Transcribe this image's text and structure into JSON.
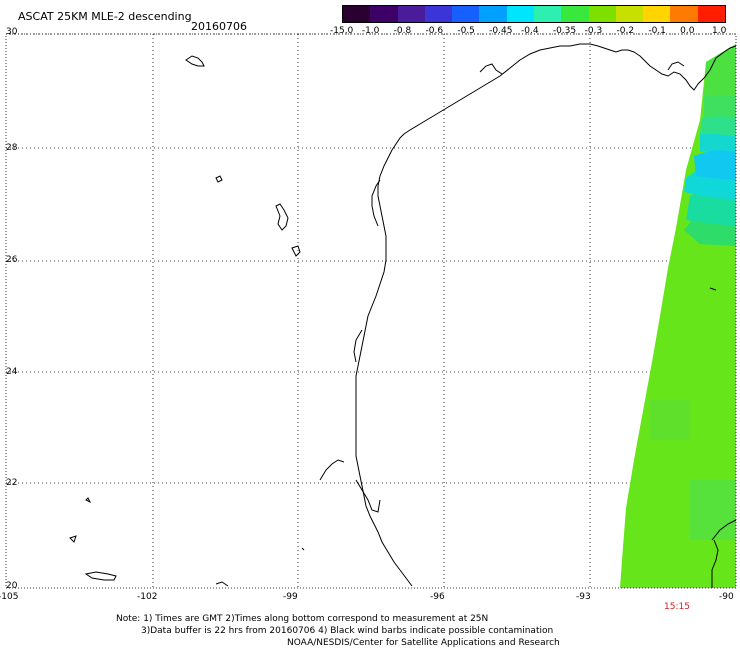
{
  "title": "ASCAT 25KM MLE-2 descending",
  "date": "20160706",
  "colorbar": {
    "labels": [
      "-15.0",
      "-1.0",
      "-0.8",
      "-0.6",
      "-0.5",
      "-0.45",
      "-0.4",
      "-0.35",
      "-0.3",
      "-0.2",
      "-0.1",
      "0.0",
      "1.0"
    ],
    "colors": [
      "#2a0030",
      "#3d0066",
      "#4b1c9a",
      "#3b35d8",
      "#1660ff",
      "#00a0ff",
      "#00e5ff",
      "#2df0b0",
      "#39e83c",
      "#7ee000",
      "#c8e000",
      "#ffd400",
      "#ff7a00",
      "#ff1e00"
    ]
  },
  "axes": {
    "y_ticks": [
      "30",
      "28",
      "26",
      "24",
      "22",
      "20"
    ],
    "x_ticks": [
      "-105",
      "-102",
      "-99",
      "-96",
      "-93",
      "-90"
    ]
  },
  "time_label": "15:15",
  "notes": {
    "line1": "Note: 1) Times are GMT 2)Times along bottom correspond to measurement at 25N",
    "line2": "3)Data buffer is 22 hrs from 20160706 4) Black wind barbs indicate possible contamination",
    "line3": "NOAA/NESDIS/Center for Satellite Applications and Research"
  }
}
